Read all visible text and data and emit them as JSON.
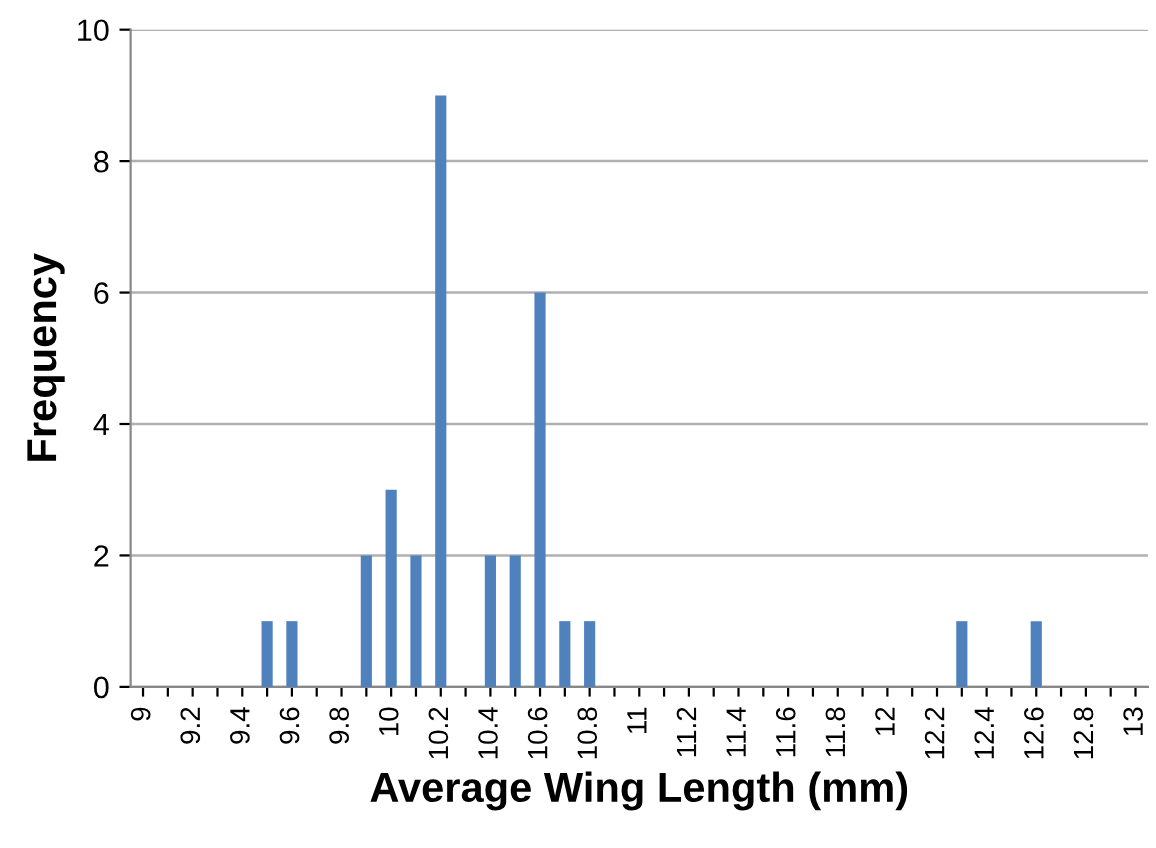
{
  "chart_data": {
    "type": "bar",
    "xlabel": "Average Wing Length (mm)",
    "ylabel": "Frequency",
    "categories": [
      "9",
      null,
      "9.2",
      null,
      "9.4",
      null,
      "9.6",
      null,
      "9.8",
      null,
      "10",
      null,
      "10.2",
      null,
      "10.4",
      null,
      "10.6",
      null,
      "10.8",
      null,
      "11",
      null,
      "11.2",
      null,
      "11.4",
      null,
      "11.6",
      null,
      "11.8",
      null,
      "12",
      null,
      "12.2",
      null,
      "12.4",
      null,
      "12.6",
      null,
      "12.8",
      null,
      "13"
    ],
    "values": [
      0,
      0,
      0,
      0,
      0,
      1,
      1,
      0,
      0,
      2,
      3,
      2,
      9,
      0,
      2,
      2,
      6,
      1,
      1,
      0,
      0,
      0,
      0,
      0,
      0,
      0,
      0,
      0,
      0,
      0,
      0,
      0,
      0,
      1,
      0,
      0,
      1,
      0,
      0,
      0,
      0
    ],
    "color": "#4f81bd",
    "ylim": [
      0,
      10
    ],
    "yticks": [
      0,
      2,
      4,
      6,
      8,
      10
    ],
    "grid": "y"
  }
}
